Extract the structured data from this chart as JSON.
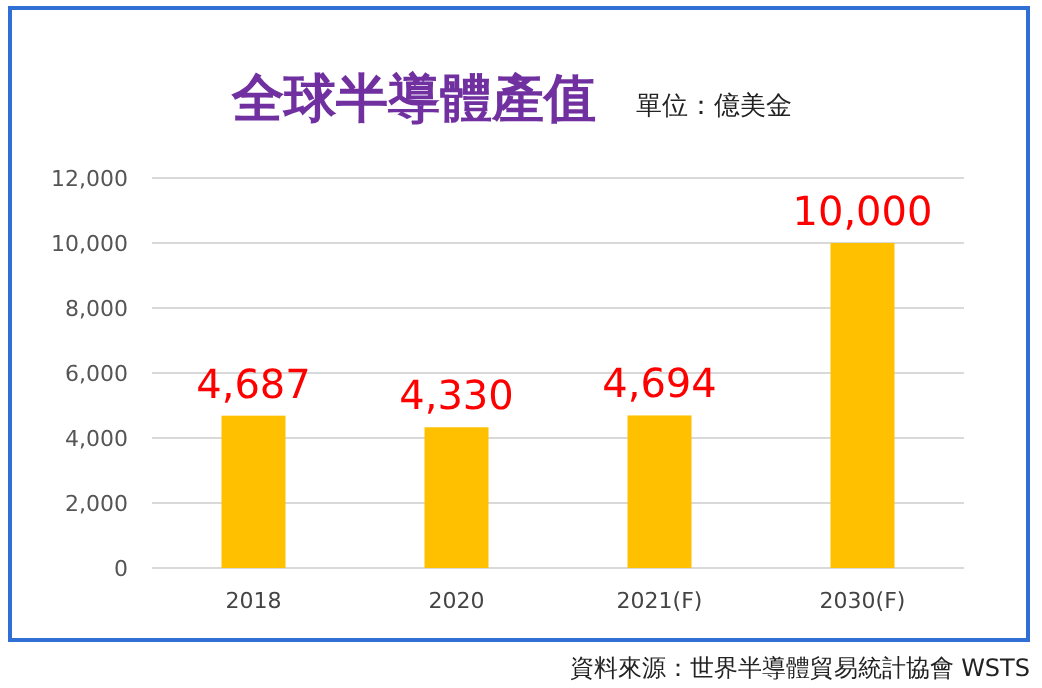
{
  "chart_data": {
    "type": "bar",
    "title": "全球半導體產值",
    "subtitle": "單位：億美金",
    "categories": [
      "2018",
      "2020",
      "2021(F)",
      "2030(F)"
    ],
    "values": [
      4687,
      4330,
      4694,
      10000
    ],
    "value_labels": [
      "4,687",
      "4,330",
      "4,694",
      "10,000"
    ],
    "color": "#ffc000",
    "ylim": [
      0,
      12000
    ],
    "yticks": [
      {
        "value": 0,
        "label": "0"
      },
      {
        "value": 2000,
        "label": "2,000"
      },
      {
        "value": 4000,
        "label": "4,000"
      },
      {
        "value": 6000,
        "label": "6,000"
      },
      {
        "value": 8000,
        "label": "8,000"
      },
      {
        "value": 10000,
        "label": "10,000"
      },
      {
        "value": 12000,
        "label": "12,000"
      }
    ],
    "grid": "y",
    "annotations": [
      "資料來源：世界半導體貿易統計協會 WSTS"
    ]
  }
}
